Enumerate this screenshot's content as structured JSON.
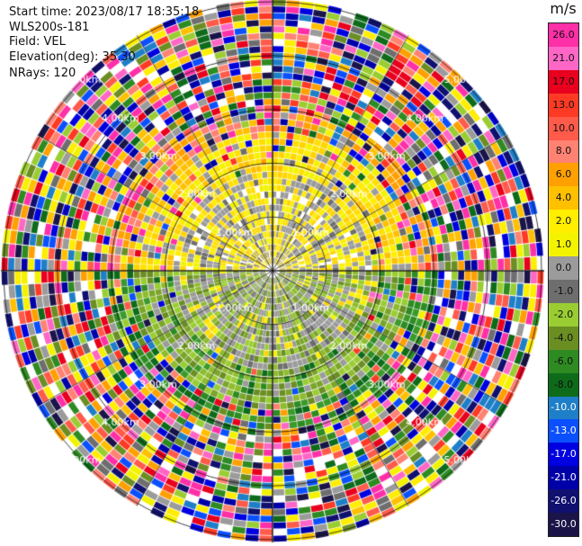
{
  "header": {
    "start_time": "Start time: 2023/08/17 18:35:18",
    "instrument": "WLS200s-181",
    "field": "Field: VEL",
    "elevation": "Elevation(deg): 35.30",
    "nrays": "NRays: 120"
  },
  "colorbar": {
    "unit": "m/s",
    "labels": [
      "26.0",
      "21.0",
      "17.0",
      "13.0",
      "10.0",
      "8.0",
      "6.0",
      "4.0",
      "2.0",
      "1.0",
      "0.0",
      "-1.0",
      "-2.0",
      "-4.0",
      "-6.0",
      "-8.0",
      "-10.0",
      "-13.0",
      "-17.0",
      "-21.0",
      "-26.0",
      "-30.0"
    ],
    "colors": [
      "#ff2fa8",
      "#ff66c6",
      "#e8001e",
      "#ff3a24",
      "#ff5a4a",
      "#ff8272",
      "#ffa000",
      "#ffc000",
      "#ffee00",
      "#f3f300",
      "#9b9b9b",
      "#6e6e6e",
      "#9acd32",
      "#6b8e23",
      "#2e8b22",
      "#0d6b1a",
      "#1e7fc8",
      "#0a50ff",
      "#0000e0",
      "#0000a8",
      "#101070",
      "#1a1448"
    ]
  },
  "ppi": {
    "ring_labels": [
      {
        "text": "1.00km",
        "angle": 45
      },
      {
        "text": "1.00km",
        "angle": 135
      },
      {
        "text": "1.00km",
        "angle": 225
      },
      {
        "text": "1.00km",
        "angle": 315
      },
      {
        "text": "2.00km",
        "angle": 45
      },
      {
        "text": "2.00km",
        "angle": 135
      },
      {
        "text": "2.00km",
        "angle": 225
      },
      {
        "text": "2.00km",
        "angle": 315
      },
      {
        "text": "3.00km",
        "angle": 45
      },
      {
        "text": "3.00km",
        "angle": 135
      },
      {
        "text": "3.00km",
        "angle": 225
      },
      {
        "text": "3.00km",
        "angle": 315
      },
      {
        "text": "4.00km",
        "angle": 45
      },
      {
        "text": "4.00km",
        "angle": 135
      },
      {
        "text": "4.00km",
        "angle": 225
      },
      {
        "text": "4.00km",
        "angle": 315
      },
      {
        "text": "5.00km",
        "angle": 45
      },
      {
        "text": "5.00km",
        "angle": 135
      },
      {
        "text": "5.00km",
        "angle": 225
      },
      {
        "text": "5.00km",
        "angle": 315
      }
    ],
    "max_range_km": 5.0,
    "n_rays": 120,
    "n_gates": 40
  }
}
